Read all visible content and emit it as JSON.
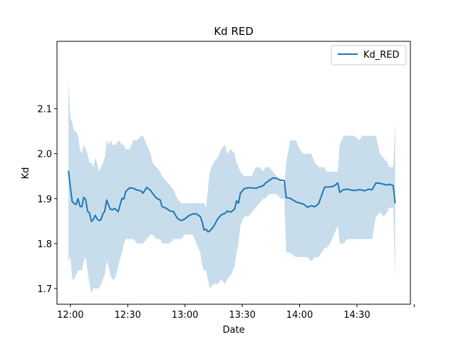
{
  "chart_data": {
    "type": "line",
    "title": "Kd RED",
    "xlabel": "Date",
    "ylabel": "Kd",
    "x_type": "time",
    "xlim": [
      "11:53",
      "14:58"
    ],
    "ylim": [
      1.665,
      2.25
    ],
    "xticks": [
      "12:00",
      "12:30",
      "13:00",
      "13:30",
      "14:00",
      "14:30",
      "15:00"
    ],
    "xtick_labels": [
      "12:00",
      "12:30",
      "13:00",
      "13:30",
      "14:00",
      "14:30",
      ""
    ],
    "yticks": [
      1.7,
      1.8,
      1.9,
      2.0,
      2.1
    ],
    "ytick_labels": [
      "1.7",
      "1.8",
      "1.9",
      "2.0",
      "2.1"
    ],
    "grid": false,
    "legend": {
      "position": "top-right",
      "entries": [
        "Kd_RED"
      ]
    },
    "series": [
      {
        "name": "Kd_RED",
        "color": "#1f77b4",
        "band_color": "#1f77b4",
        "band_opacity": 0.25,
        "x": [
          "11:59",
          "12:00",
          "12:01",
          "12:02",
          "12:03",
          "12:04",
          "12:05",
          "12:06",
          "12:07",
          "12:08",
          "12:09",
          "12:10",
          "12:11",
          "12:12",
          "12:13",
          "12:14",
          "12:15",
          "12:16",
          "12:17",
          "12:18",
          "12:19",
          "12:20",
          "12:21",
          "12:22",
          "12:23",
          "12:24",
          "12:25",
          "12:27",
          "12:28",
          "12:29",
          "12:31",
          "12:33",
          "12:35",
          "12:37",
          "12:38",
          "12:40",
          "12:42",
          "12:43",
          "12:45",
          "12:47",
          "12:48",
          "12:50",
          "12:52",
          "12:54",
          "12:56",
          "12:58",
          "13:00",
          "13:02",
          "13:04",
          "13:06",
          "13:08",
          "13:09",
          "13:10",
          "13:11",
          "13:12",
          "13:13",
          "13:15",
          "13:17",
          "13:19",
          "13:21",
          "13:22",
          "13:24",
          "13:26",
          "13:27",
          "13:28",
          "13:29",
          "13:31",
          "13:33",
          "13:35",
          "13:37",
          "13:39",
          "13:41",
          "13:42",
          "13:44",
          "13:46",
          "13:48",
          "13:50",
          "13:52",
          "13:53",
          "13:55",
          "13:58",
          "14:00",
          "14:02",
          "14:04",
          "14:06",
          "14:08",
          "14:10",
          "14:13",
          "14:14",
          "14:16",
          "14:18",
          "14:20",
          "14:21",
          "14:23",
          "14:25",
          "14:27",
          "14:29",
          "14:31",
          "14:33",
          "14:34",
          "14:36",
          "14:38",
          "14:40",
          "14:42",
          "14:44",
          "14:46",
          "14:47",
          "14:49",
          "14:50"
        ],
        "y": [
          1.962,
          1.925,
          1.893,
          1.889,
          1.887,
          1.9,
          1.883,
          1.882,
          1.903,
          1.898,
          1.872,
          1.868,
          1.849,
          1.853,
          1.863,
          1.855,
          1.851,
          1.853,
          1.866,
          1.872,
          1.897,
          1.885,
          1.876,
          1.875,
          1.878,
          1.875,
          1.871,
          1.901,
          1.899,
          1.916,
          1.924,
          1.923,
          1.919,
          1.917,
          1.912,
          1.925,
          1.918,
          1.912,
          1.901,
          1.897,
          1.882,
          1.879,
          1.873,
          1.871,
          1.856,
          1.851,
          1.855,
          1.862,
          1.866,
          1.866,
          1.86,
          1.848,
          1.83,
          1.832,
          1.826,
          1.828,
          1.838,
          1.854,
          1.864,
          1.867,
          1.872,
          1.87,
          1.877,
          1.895,
          1.89,
          1.912,
          1.922,
          1.924,
          1.924,
          1.923,
          1.926,
          1.929,
          1.934,
          1.94,
          1.946,
          1.945,
          1.941,
          1.94,
          1.902,
          1.901,
          1.893,
          1.89,
          1.888,
          1.881,
          1.884,
          1.882,
          1.889,
          1.925,
          1.926,
          1.926,
          1.928,
          1.935,
          1.914,
          1.92,
          1.921,
          1.919,
          1.918,
          1.92,
          1.919,
          1.917,
          1.921,
          1.92,
          1.935,
          1.934,
          1.932,
          1.93,
          1.932,
          1.929,
          1.889
        ],
        "upper": [
          2.16,
          2.08,
          2.07,
          2.05,
          2.05,
          2.04,
          2.01,
          2.0,
          2.02,
          2.01,
          2.0,
          1.98,
          1.98,
          1.97,
          1.99,
          1.98,
          1.96,
          1.97,
          1.98,
          1.99,
          2.03,
          2.02,
          2.03,
          2.02,
          2.02,
          2.02,
          2.03,
          2.02,
          2.02,
          2.01,
          2.01,
          2.03,
          2.03,
          2.04,
          2.04,
          2.02,
          2.0,
          1.98,
          1.97,
          1.96,
          1.95,
          1.94,
          1.93,
          1.92,
          1.9,
          1.89,
          1.89,
          1.89,
          1.89,
          1.89,
          1.89,
          1.89,
          1.89,
          1.88,
          1.92,
          1.96,
          1.98,
          1.99,
          2.01,
          2.02,
          2.0,
          2.01,
          2.0,
          1.98,
          1.97,
          1.96,
          1.95,
          1.95,
          1.95,
          1.97,
          1.97,
          1.96,
          1.97,
          1.97,
          1.96,
          1.95,
          1.94,
          1.93,
          1.98,
          2.03,
          2.03,
          2.01,
          2.0,
          2.0,
          2.0,
          1.98,
          1.97,
          1.97,
          1.96,
          1.96,
          1.96,
          1.96,
          2.02,
          2.04,
          2.04,
          2.04,
          2.04,
          2.03,
          2.04,
          2.04,
          2.04,
          2.04,
          2.04,
          2.0,
          1.99,
          1.98,
          1.97,
          1.97,
          2.07
        ],
        "lower": [
          1.76,
          1.77,
          1.72,
          1.72,
          1.73,
          1.74,
          1.74,
          1.74,
          1.76,
          1.77,
          1.74,
          1.71,
          1.69,
          1.7,
          1.7,
          1.7,
          1.7,
          1.71,
          1.72,
          1.73,
          1.76,
          1.75,
          1.73,
          1.72,
          1.72,
          1.73,
          1.75,
          1.78,
          1.8,
          1.81,
          1.81,
          1.81,
          1.8,
          1.8,
          1.8,
          1.81,
          1.82,
          1.82,
          1.81,
          1.81,
          1.8,
          1.8,
          1.8,
          1.81,
          1.81,
          1.81,
          1.82,
          1.82,
          1.82,
          1.8,
          1.78,
          1.75,
          1.74,
          1.74,
          1.72,
          1.7,
          1.71,
          1.71,
          1.72,
          1.71,
          1.72,
          1.73,
          1.75,
          1.78,
          1.8,
          1.84,
          1.86,
          1.86,
          1.87,
          1.88,
          1.89,
          1.9,
          1.9,
          1.91,
          1.91,
          1.91,
          1.9,
          1.9,
          1.78,
          1.78,
          1.77,
          1.77,
          1.77,
          1.77,
          1.76,
          1.77,
          1.77,
          1.79,
          1.79,
          1.8,
          1.82,
          1.84,
          1.8,
          1.8,
          1.81,
          1.81,
          1.81,
          1.81,
          1.81,
          1.81,
          1.81,
          1.81,
          1.86,
          1.87,
          1.86,
          1.87,
          1.88,
          1.88,
          1.72
        ]
      }
    ]
  }
}
